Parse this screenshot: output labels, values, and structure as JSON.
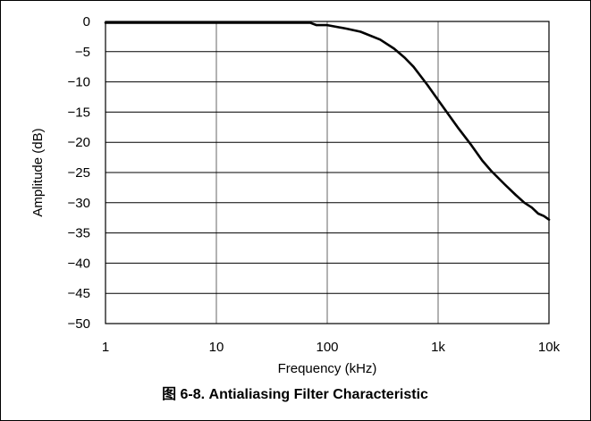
{
  "figure_caption": "图 6-8. Antialiasing Filter Characteristic",
  "chart_data": {
    "type": "line",
    "title": "",
    "xlabel": "Frequency (kHz)",
    "ylabel": "Amplitude (dB)",
    "x_scale": "log",
    "xlim": [
      1,
      10000
    ],
    "ylim": [
      -50,
      0
    ],
    "grid": true,
    "legend": "none",
    "x_ticks": [
      {
        "value": 1,
        "label": "1"
      },
      {
        "value": 10,
        "label": "10"
      },
      {
        "value": 100,
        "label": "100"
      },
      {
        "value": 1000,
        "label": "1k"
      },
      {
        "value": 10000,
        "label": "10k"
      }
    ],
    "y_ticks": [
      {
        "value": 0,
        "label": "0"
      },
      {
        "value": -5,
        "label": "−5"
      },
      {
        "value": -10,
        "label": "−10"
      },
      {
        "value": -15,
        "label": "−15"
      },
      {
        "value": -20,
        "label": "−20"
      },
      {
        "value": -25,
        "label": "−25"
      },
      {
        "value": -30,
        "label": "−30"
      },
      {
        "value": -35,
        "label": "−35"
      },
      {
        "value": -40,
        "label": "−40"
      },
      {
        "value": -45,
        "label": "−45"
      },
      {
        "value": -50,
        "label": "−50"
      }
    ],
    "series": [
      {
        "color": "#000000",
        "x": [
          1,
          10,
          50,
          70,
          80,
          100,
          150,
          200,
          300,
          400,
          500,
          600,
          800,
          1000,
          1500,
          2000,
          2500,
          3000,
          4000,
          5000,
          6000,
          7000,
          8000,
          9000,
          10000
        ],
        "y": [
          -0.2,
          -0.2,
          -0.2,
          -0.2,
          -0.6,
          -0.6,
          -1.2,
          -1.7,
          -3.0,
          -4.5,
          -6.0,
          -7.5,
          -10.5,
          -13.0,
          -17.5,
          -20.5,
          -23.0,
          -24.7,
          -27.0,
          -28.7,
          -30.0,
          -30.8,
          -31.8,
          -32.2,
          -32.8
        ]
      }
    ]
  }
}
